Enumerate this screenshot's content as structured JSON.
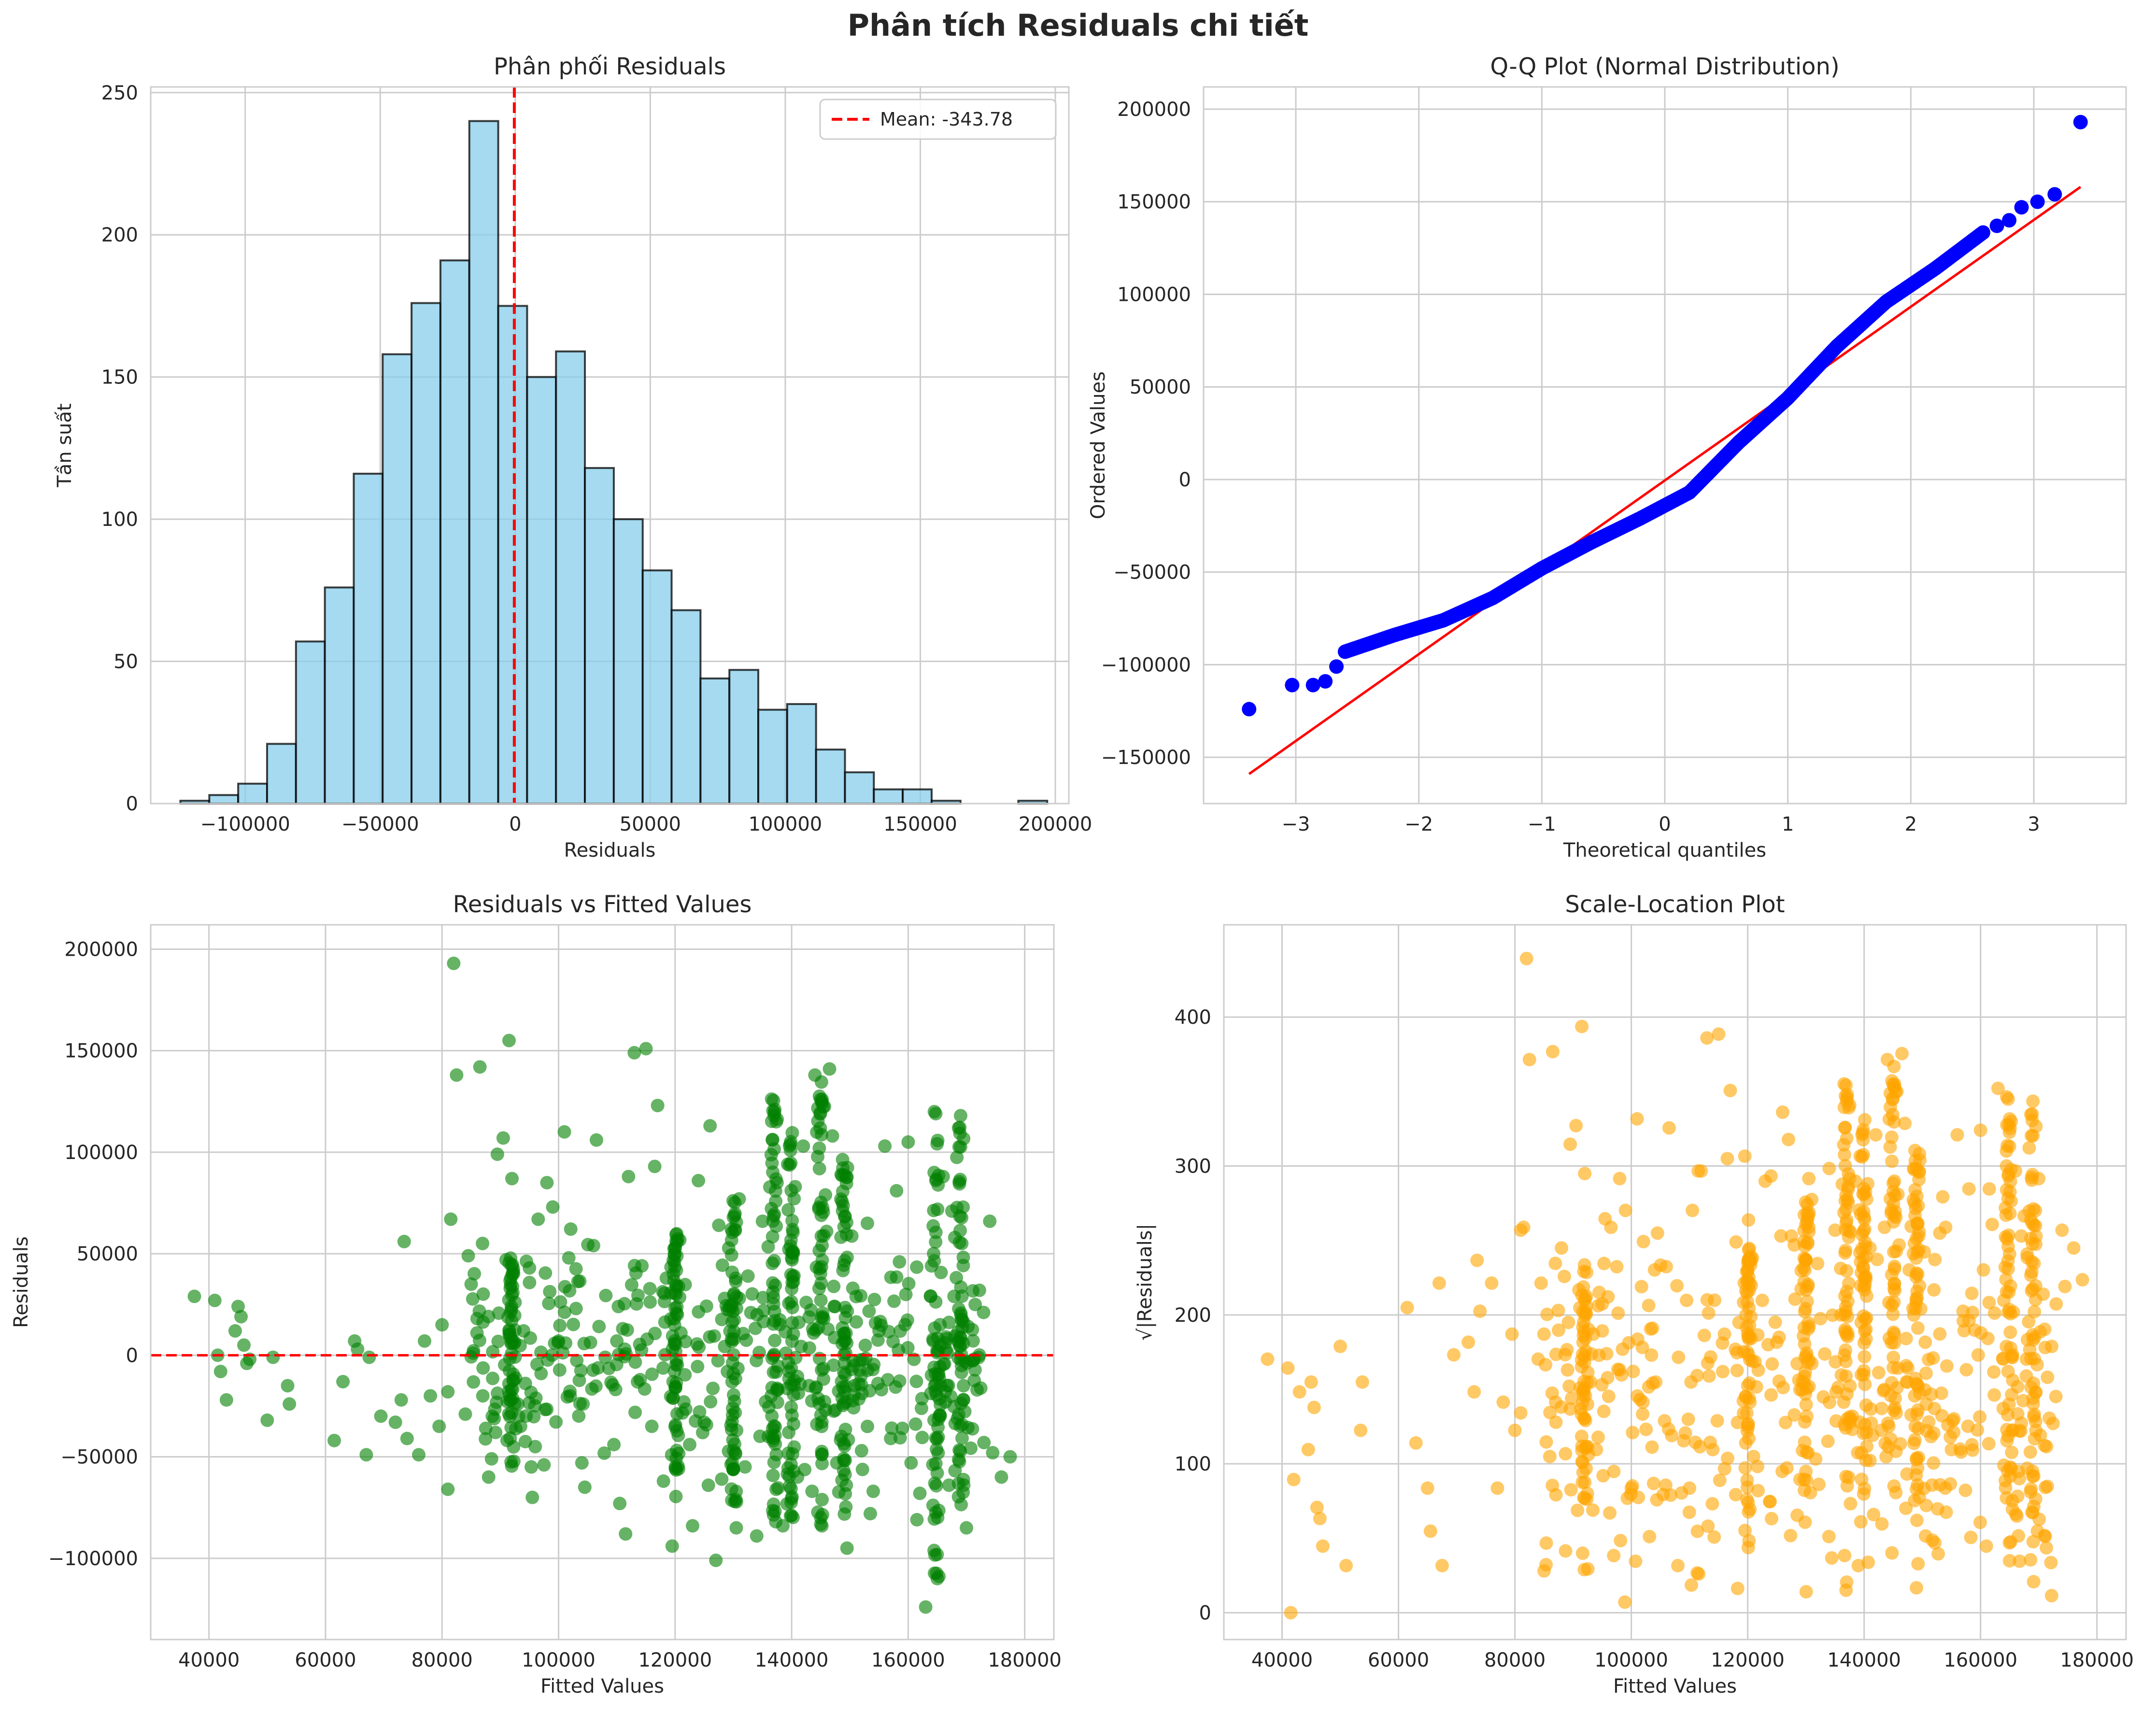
{
  "suptitle": "Phân tích Residuals chi tiết",
  "colors": {
    "grid": "#cccccc",
    "spine": "#cccccc",
    "mean_line": "#ff0000",
    "hist_fill": "#87ceeb",
    "hist_edge": "#000000",
    "qq_points": "#0000ff",
    "qq_line": "#ff0000",
    "rvf_points": "#008000",
    "scale_points": "#ffa500"
  },
  "chart_data": [
    {
      "type": "bar",
      "title": "Phân phối Residuals",
      "xlabel": "Residuals",
      "ylabel": "Tần suất",
      "xlim": [
        -135000,
        205000
      ],
      "ylim": [
        0,
        252
      ],
      "xticks": [
        -100000,
        -50000,
        0,
        50000,
        100000,
        150000,
        200000
      ],
      "xtick_labels": [
        "−100000",
        "−50000",
        "0",
        "50000",
        "100000",
        "150000",
        "200000"
      ],
      "yticks": [
        0,
        50,
        100,
        150,
        200,
        250
      ],
      "ytick_labels": [
        "0",
        "50",
        "100",
        "150",
        "200",
        "250"
      ],
      "bin_edges": [
        -124000,
        -113300,
        -102600,
        -91900,
        -81200,
        -70500,
        -59800,
        -49100,
        -38400,
        -27700,
        -17000,
        -6300,
        4400,
        15100,
        25800,
        36500,
        47200,
        57900,
        68600,
        79300,
        90000,
        100700,
        111400,
        122100,
        132800,
        143500,
        154200,
        164900,
        175600,
        186300,
        197000
      ],
      "values": [
        1,
        3,
        7,
        21,
        57,
        76,
        116,
        158,
        176,
        191,
        240,
        175,
        150,
        159,
        118,
        100,
        82,
        68,
        44,
        47,
        33,
        35,
        19,
        11,
        5,
        5,
        1,
        0,
        0,
        1
      ],
      "mean_value": -343.78,
      "legend": {
        "label": "Mean: -343.78",
        "placement": "upper right"
      }
    },
    {
      "type": "scatter",
      "title": "Q-Q Plot (Normal Distribution)",
      "xlabel": "Theoretical quantiles",
      "ylabel": "Ordered Values",
      "xlim": [
        -3.75,
        3.75
      ],
      "ylim": [
        -175000,
        212000
      ],
      "xticks": [
        -3,
        -2,
        -1,
        0,
        1,
        2,
        3
      ],
      "xtick_labels": [
        "−3",
        "−2",
        "−1",
        "0",
        "1",
        "2",
        "3"
      ],
      "yticks": [
        -150000,
        -100000,
        -50000,
        0,
        50000,
        100000,
        150000,
        200000
      ],
      "ytick_labels": [
        "−150000",
        "−100000",
        "−50000",
        "0",
        "50000",
        "100000",
        "150000",
        "200000"
      ],
      "fit_line": {
        "x": [
          -3.38,
          3.38
        ],
        "y": [
          -159000,
          158000
        ]
      },
      "curve_knots": {
        "x": [
          -2.6,
          -2.2,
          -1.8,
          -1.4,
          -1.0,
          -0.6,
          -0.2,
          0.2,
          0.6,
          1.0,
          1.4,
          1.8,
          2.2,
          2.6
        ],
        "y": [
          -93000,
          -84000,
          -76000,
          -64000,
          -48000,
          -34000,
          -21000,
          -7000,
          20000,
          44000,
          72000,
          96000,
          114000,
          134000
        ]
      },
      "tail_points": [
        {
          "x": -3.38,
          "y": -124000
        },
        {
          "x": -3.03,
          "y": -111000
        },
        {
          "x": -2.86,
          "y": -111000
        },
        {
          "x": -2.76,
          "y": -109000
        },
        {
          "x": -2.67,
          "y": -101000
        },
        {
          "x": 2.7,
          "y": 137000
        },
        {
          "x": 2.8,
          "y": 140000
        },
        {
          "x": 2.9,
          "y": 147000
        },
        {
          "x": 3.03,
          "y": 150000
        },
        {
          "x": 3.17,
          "y": 154000
        },
        {
          "x": 3.38,
          "y": 193000
        }
      ]
    },
    {
      "type": "scatter",
      "title": "Residuals vs Fitted Values",
      "xlabel": "Fitted Values",
      "ylabel": "Residuals",
      "xlim": [
        30000,
        185000
      ],
      "ylim": [
        -140000,
        212000
      ],
      "xticks": [
        40000,
        60000,
        80000,
        100000,
        120000,
        140000,
        160000,
        180000
      ],
      "xtick_labels": [
        "40000",
        "60000",
        "80000",
        "100000",
        "120000",
        "140000",
        "160000",
        "180000"
      ],
      "yticks": [
        -100000,
        -50000,
        0,
        50000,
        100000,
        150000,
        200000
      ],
      "ytick_labels": [
        "−100000",
        "−50000",
        "0",
        "50000",
        "100000",
        "150000",
        "200000"
      ],
      "zero_line_y": 0,
      "points": [
        [
          37500,
          29000
        ],
        [
          41000,
          27000
        ],
        [
          41500,
          0
        ],
        [
          42000,
          -8000
        ],
        [
          43000,
          -22000
        ],
        [
          44500,
          12000
        ],
        [
          45000,
          24000
        ],
        [
          45500,
          19000
        ],
        [
          46000,
          5000
        ],
        [
          46500,
          -4000
        ],
        [
          47000,
          -2000
        ],
        [
          50000,
          -32000
        ],
        [
          51000,
          -1000
        ],
        [
          53500,
          -15000
        ],
        [
          53800,
          -24000
        ],
        [
          61500,
          -42000
        ],
        [
          63000,
          -13000
        ],
        [
          65000,
          7000
        ],
        [
          65500,
          3000
        ],
        [
          67000,
          -49000
        ],
        [
          67500,
          -1000
        ],
        [
          72000,
          -33000
        ],
        [
          73000,
          -22000
        ],
        [
          73500,
          56000
        ],
        [
          74000,
          -41000
        ],
        [
          76000,
          -49000
        ],
        [
          78000,
          -20000
        ],
        [
          79500,
          -35000
        ],
        [
          80000,
          15000
        ],
        [
          81000,
          -66000
        ],
        [
          81500,
          67000
        ],
        [
          82000,
          193000
        ],
        [
          82500,
          138000
        ],
        [
          84000,
          -29000
        ],
        [
          85000,
          35000
        ],
        [
          86000,
          11000
        ],
        [
          86500,
          142000
        ],
        [
          87000,
          -20000
        ],
        [
          88000,
          -60000
        ],
        [
          89500,
          99000
        ],
        [
          90500,
          107000
        ],
        [
          91500,
          155000
        ],
        [
          93000,
          -24000
        ],
        [
          94000,
          12000
        ],
        [
          95000,
          43000
        ],
        [
          96000,
          -45000
        ],
        [
          96500,
          67000
        ],
        [
          97500,
          -54000
        ],
        [
          98000,
          85000
        ],
        [
          100000,
          7000
        ],
        [
          101000,
          110000
        ],
        [
          102000,
          -20000
        ],
        [
          104000,
          -53000
        ],
        [
          106500,
          106000
        ],
        [
          108000,
          -1000
        ],
        [
          109500,
          -44000
        ],
        [
          110000,
          7000
        ],
        [
          112000,
          88000
        ],
        [
          113000,
          149000
        ],
        [
          114000,
          -12000
        ],
        [
          115000,
          151000
        ],
        [
          116000,
          -35000
        ],
        [
          117000,
          123000
        ],
        [
          118000,
          -62000
        ],
        [
          119500,
          -94000
        ],
        [
          120000,
          53000
        ],
        [
          121000,
          11000
        ],
        [
          122500,
          -44000
        ],
        [
          124000,
          86000
        ],
        [
          125000,
          -33000
        ],
        [
          126000,
          113000
        ],
        [
          127000,
          -101000
        ],
        [
          128500,
          28000
        ],
        [
          130000,
          -9000
        ],
        [
          131000,
          77000
        ],
        [
          132000,
          -55000
        ],
        [
          133000,
          21000
        ],
        [
          134000,
          -89000
        ],
        [
          135000,
          66000
        ],
        [
          136500,
          -20000
        ],
        [
          137500,
          85000
        ],
        [
          138500,
          -84000
        ],
        [
          139000,
          1000
        ],
        [
          140000,
          48000
        ],
        [
          141000,
          -60000
        ],
        [
          142000,
          103000
        ],
        [
          143000,
          -15000
        ],
        [
          144000,
          138000
        ],
        [
          145000,
          -80000
        ],
        [
          146000,
          61000
        ],
        [
          146500,
          141000
        ],
        [
          147500,
          -27000
        ],
        [
          148500,
          89000
        ],
        [
          149500,
          -95000
        ],
        [
          150500,
          33000
        ],
        [
          152000,
          -47000
        ],
        [
          153000,
          65000
        ],
        [
          154000,
          -67000
        ],
        [
          155000,
          12000
        ],
        [
          156000,
          103000
        ],
        [
          157000,
          -41000
        ],
        [
          158000,
          81000
        ],
        [
          159000,
          -36000
        ],
        [
          160000,
          105000
        ],
        [
          161000,
          -2000
        ],
        [
          162000,
          -68000
        ],
        [
          163000,
          -124000
        ],
        [
          164000,
          44000
        ],
        [
          164500,
          120000
        ],
        [
          165000,
          -110000
        ],
        [
          165500,
          -30000
        ],
        [
          166000,
          88000
        ],
        [
          167000,
          -64000
        ],
        [
          168000,
          58000
        ],
        [
          169000,
          118000
        ],
        [
          169500,
          -15000
        ],
        [
          170000,
          -85000
        ],
        [
          171500,
          25000
        ],
        [
          173000,
          -43000
        ],
        [
          174000,
          66000
        ],
        [
          174500,
          -48000
        ],
        [
          176000,
          -60000
        ],
        [
          177500,
          -50000
        ],
        [
          136000,
          -40000
        ],
        [
          142500,
          26000
        ],
        [
          149000,
          -52000
        ],
        [
          158500,
          46000
        ],
        [
          128000,
          -61000
        ],
        [
          121500,
          -23000
        ],
        [
          118500,
          38000
        ],
        [
          110500,
          -73000
        ],
        [
          103000,
          23000
        ],
        [
          97000,
          -9000
        ],
        [
          91000,
          47000
        ],
        [
          87500,
          -36000
        ],
        [
          77000,
          7000
        ],
        [
          69500,
          -30000
        ],
        [
          84500,
          49000
        ],
        [
          132500,
          39000
        ],
        [
          139500,
          -38000
        ],
        [
          145500,
          18000
        ],
        [
          151500,
          -14000
        ],
        [
          160500,
          -53000
        ],
        [
          166500,
          9000
        ],
        [
          167500,
          71000
        ],
        [
          147000,
          108000
        ],
        [
          137000,
          118000
        ],
        [
          127500,
          64000
        ],
        [
          116500,
          93000
        ],
        [
          106000,
          54000
        ],
        [
          99000,
          73000
        ],
        [
          92000,
          87000
        ],
        [
          81000,
          -18000
        ],
        [
          88500,
          -51000
        ],
        [
          95500,
          -70000
        ],
        [
          104500,
          -65000
        ],
        [
          111500,
          -88000
        ],
        [
          123000,
          -84000
        ],
        [
          130500,
          -85000
        ],
        [
          143500,
          -67000
        ],
        [
          153500,
          -78000
        ],
        [
          161500,
          -81000
        ]
      ],
      "vertical_bands": [
        {
          "x": 92000,
          "y_min": -55000,
          "y_max": 50000
        },
        {
          "x": 120000,
          "y_min": -70000,
          "y_max": 60000
        },
        {
          "x": 130000,
          "y_min": -75000,
          "y_max": 80000
        },
        {
          "x": 137000,
          "y_min": -85000,
          "y_max": 130000
        },
        {
          "x": 140000,
          "y_min": -80000,
          "y_max": 110000
        },
        {
          "x": 145000,
          "y_min": -85000,
          "y_max": 140000
        },
        {
          "x": 149000,
          "y_min": -80000,
          "y_max": 100000
        },
        {
          "x": 165000,
          "y_min": -115000,
          "y_max": 120000
        },
        {
          "x": 169000,
          "y_min": -80000,
          "y_max": 115000
        }
      ]
    },
    {
      "type": "scatter",
      "title": "Scale-Location Plot",
      "xlabel": "Fitted Values",
      "ylabel": "√|Residuals|",
      "xlim": [
        30000,
        185000
      ],
      "ylim": [
        -18,
        462
      ],
      "xticks": [
        40000,
        60000,
        80000,
        100000,
        120000,
        140000,
        160000,
        180000
      ],
      "xtick_labels": [
        "40000",
        "60000",
        "80000",
        "100000",
        "120000",
        "140000",
        "160000",
        "180000"
      ],
      "yticks": [
        0,
        100,
        200,
        300,
        400
      ],
      "ytick_labels": [
        "0",
        "100",
        "200",
        "300",
        "400"
      ],
      "transform": "sqrt_abs_residuals"
    }
  ]
}
